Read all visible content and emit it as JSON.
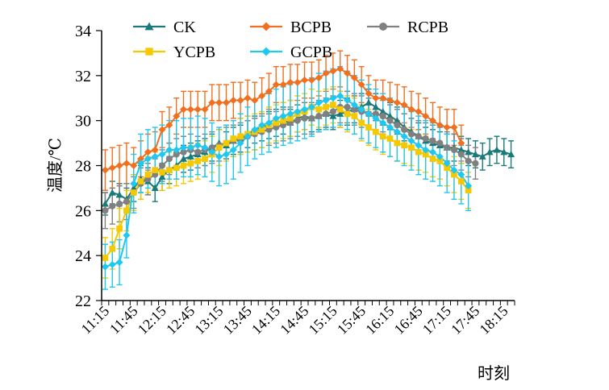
{
  "chart_data": {
    "type": "line",
    "xlabel": "时刻",
    "ylabel": "温度/℃",
    "ylim": [
      22,
      34
    ],
    "yticks": [
      22,
      24,
      26,
      28,
      30,
      32,
      34
    ],
    "x_tick_labels": [
      "11:15",
      "11:45",
      "12:15",
      "12:45",
      "13:15",
      "13:45",
      "14:15",
      "14:45",
      "15:15",
      "15:45",
      "16:15",
      "16:45",
      "17:15",
      "17:45",
      "18:15"
    ],
    "grid": false,
    "legend_position": "top",
    "series": [
      {
        "name": "CK",
        "color": "#1a7a7a",
        "marker": "triangle",
        "values": [
          26.3,
          26.8,
          26.7,
          26.5,
          27.0,
          27.4,
          27.3,
          27.0,
          27.5,
          27.8,
          28.0,
          28.3,
          28.4,
          28.5,
          28.6,
          28.8,
          29.0,
          28.9,
          29.1,
          29.2,
          29.4,
          29.6,
          29.7,
          29.8,
          29.9,
          30.0,
          29.9,
          30.1,
          30.2,
          30.1,
          30.2,
          30.3,
          30.2,
          30.3,
          30.4,
          30.5,
          30.6,
          30.8,
          30.6,
          30.4,
          30.2,
          30.0,
          29.7,
          29.5,
          29.3,
          29.1,
          29.0,
          28.9,
          28.8,
          28.8,
          28.7,
          28.6,
          28.5,
          28.4,
          28.6,
          28.7,
          28.6,
          28.5
        ],
        "errors": [
          0.5,
          0.5,
          0.5,
          0.5,
          0.6,
          0.6,
          0.6,
          0.6,
          0.6,
          0.6,
          0.6,
          0.6,
          0.6,
          0.6,
          0.6,
          0.6,
          0.6,
          0.6,
          0.6,
          0.6,
          0.6,
          0.6,
          0.6,
          0.6,
          0.6,
          0.6,
          0.6,
          0.6,
          0.6,
          0.6,
          0.6,
          0.6,
          0.6,
          0.6,
          0.6,
          0.6,
          0.6,
          0.6,
          0.6,
          0.6,
          0.6,
          0.6,
          0.6,
          0.6,
          0.6,
          0.6,
          0.6,
          0.6,
          0.6,
          0.6,
          0.6,
          0.6,
          0.6,
          0.6,
          0.6,
          0.6,
          0.6,
          0.6
        ]
      },
      {
        "name": "BCPB",
        "color": "#f07020",
        "marker": "diamond",
        "values": [
          27.8,
          27.9,
          28.0,
          28.1,
          28.0,
          28.3,
          28.6,
          28.7,
          29.6,
          29.8,
          30.2,
          30.5,
          30.5,
          30.5,
          30.5,
          30.8,
          30.8,
          30.8,
          30.9,
          30.9,
          31.0,
          30.9,
          31.1,
          31.3,
          31.6,
          31.6,
          31.7,
          31.7,
          31.8,
          31.8,
          31.9,
          32.1,
          32.2,
          32.3,
          32.1,
          31.9,
          31.6,
          31.2,
          31.0,
          31.0,
          30.9,
          30.8,
          30.7,
          30.5,
          30.4,
          30.2,
          30.0,
          29.8,
          29.7,
          29.7,
          29.0
        ],
        "errors": [
          0.9,
          0.9,
          0.9,
          0.9,
          0.8,
          0.8,
          0.8,
          0.8,
          0.8,
          0.8,
          0.8,
          0.8,
          0.8,
          0.8,
          0.8,
          0.8,
          0.8,
          0.8,
          0.8,
          0.8,
          0.8,
          0.8,
          0.8,
          0.8,
          0.8,
          0.8,
          0.8,
          0.8,
          0.8,
          0.8,
          0.8,
          0.8,
          0.8,
          0.8,
          0.8,
          0.8,
          0.8,
          0.8,
          0.8,
          0.8,
          0.8,
          0.8,
          0.8,
          0.8,
          0.8,
          0.8,
          0.8,
          0.8,
          0.8,
          0.8,
          0.8
        ]
      },
      {
        "name": "RCPB",
        "color": "#808080",
        "marker": "circle",
        "values": [
          26.0,
          26.2,
          26.3,
          26.4,
          26.8,
          27.2,
          27.4,
          27.6,
          28.0,
          28.3,
          28.5,
          28.6,
          28.7,
          28.6,
          28.7,
          28.8,
          28.9,
          29.0,
          29.1,
          29.2,
          29.3,
          29.4,
          29.5,
          29.6,
          29.7,
          29.8,
          29.9,
          30.0,
          30.1,
          30.1,
          30.2,
          30.3,
          30.4,
          30.6,
          30.6,
          30.5,
          30.4,
          30.3,
          30.3,
          30.2,
          30.0,
          29.8,
          29.6,
          29.4,
          29.3,
          29.2,
          29.1,
          29.0,
          28.8,
          28.7,
          28.5,
          28.2,
          28.1
        ],
        "errors": [
          0.8,
          0.8,
          0.8,
          0.8,
          0.7,
          0.7,
          0.7,
          0.7,
          0.7,
          0.7,
          0.7,
          0.7,
          0.7,
          0.7,
          0.7,
          0.7,
          0.7,
          0.7,
          0.7,
          0.7,
          0.7,
          0.7,
          0.7,
          0.7,
          0.7,
          0.7,
          0.7,
          0.7,
          0.7,
          0.7,
          0.7,
          0.7,
          0.7,
          0.7,
          0.7,
          0.7,
          0.7,
          0.7,
          0.7,
          0.7,
          0.7,
          0.7,
          0.7,
          0.7,
          0.7,
          0.7,
          0.7,
          0.7,
          0.7,
          0.7,
          0.7,
          0.7,
          0.7
        ]
      },
      {
        "name": "YCPB",
        "color": "#f5c800",
        "marker": "square",
        "values": [
          23.9,
          24.3,
          25.2,
          26.0,
          26.8,
          27.3,
          27.6,
          27.8,
          27.7,
          27.8,
          27.9,
          28.0,
          28.1,
          28.2,
          28.3,
          28.5,
          28.8,
          29.0,
          29.2,
          29.3,
          29.4,
          29.5,
          29.6,
          29.8,
          29.9,
          30.0,
          30.1,
          30.3,
          30.4,
          30.6,
          30.5,
          30.6,
          30.7,
          30.5,
          30.3,
          30.2,
          29.9,
          29.7,
          29.5,
          29.3,
          29.2,
          29.0,
          28.9,
          28.8,
          28.6,
          28.5,
          28.3,
          28.2,
          27.9,
          27.6,
          27.3,
          26.9
        ],
        "errors": [
          0.9,
          0.9,
          0.9,
          0.9,
          0.8,
          0.8,
          0.8,
          0.8,
          0.8,
          0.8,
          0.8,
          0.8,
          0.8,
          0.8,
          0.8,
          0.8,
          0.8,
          0.8,
          0.8,
          0.8,
          0.8,
          0.8,
          0.8,
          0.8,
          0.8,
          0.8,
          0.8,
          0.8,
          0.8,
          0.8,
          0.8,
          0.8,
          0.8,
          0.8,
          0.8,
          0.8,
          0.8,
          0.8,
          0.8,
          0.8,
          0.8,
          0.8,
          0.8,
          0.8,
          0.8,
          0.8,
          0.8,
          0.8,
          0.8,
          0.8,
          0.8,
          0.8
        ]
      },
      {
        "name": "GCPB",
        "color": "#1ec8f0",
        "marker": "diamond",
        "values": [
          23.5,
          23.6,
          23.7,
          24.9,
          27.2,
          28.1,
          28.3,
          28.4,
          28.5,
          28.7,
          28.7,
          28.8,
          28.8,
          28.9,
          28.8,
          28.6,
          28.4,
          28.5,
          28.7,
          29.0,
          29.3,
          29.6,
          29.8,
          29.9,
          30.1,
          30.2,
          30.3,
          30.4,
          30.5,
          30.6,
          30.8,
          30.9,
          31.0,
          31.1,
          30.9,
          30.7,
          30.5,
          30.3,
          30.1,
          29.9,
          29.7,
          29.5,
          29.3,
          29.1,
          28.9,
          28.7,
          28.6,
          28.4,
          28.1,
          27.8,
          27.6,
          27.1
        ],
        "errors": [
          1.0,
          1.0,
          1.0,
          1.0,
          1.3,
          1.3,
          1.3,
          1.3,
          1.3,
          1.3,
          1.3,
          1.3,
          1.3,
          1.3,
          1.3,
          1.3,
          1.3,
          1.3,
          1.3,
          1.3,
          1.3,
          1.3,
          1.3,
          1.3,
          1.3,
          1.3,
          1.3,
          1.3,
          1.3,
          1.3,
          1.3,
          1.3,
          1.3,
          1.3,
          1.3,
          1.3,
          1.3,
          1.3,
          1.3,
          1.3,
          1.3,
          1.3,
          1.3,
          1.3,
          1.3,
          1.3,
          1.3,
          1.3,
          1.3,
          1.3,
          1.3,
          1.1
        ]
      }
    ]
  }
}
